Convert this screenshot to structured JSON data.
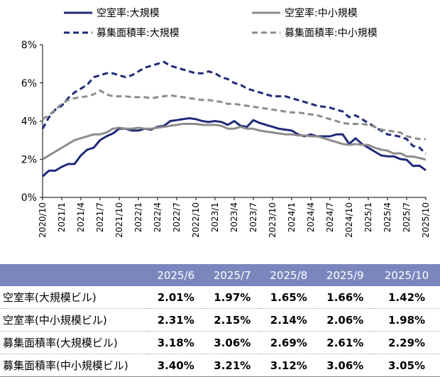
{
  "chart_data": {
    "type": "line",
    "title": "",
    "xlabel": "",
    "ylabel": "",
    "ylim": [
      0,
      8
    ],
    "y_ticks": [
      "0%",
      "2%",
      "4%",
      "6%",
      "8%"
    ],
    "grid": false,
    "legend_position": "top",
    "x_tick_labels": [
      "2020/10",
      "2021/1",
      "2021/4",
      "2021/7",
      "2021/10",
      "2022/1",
      "2022/4",
      "2022/7",
      "2022/10",
      "2023/1",
      "2023/4",
      "2023/7",
      "2023/10",
      "2024/1",
      "2024/4",
      "2024/7",
      "2024/10",
      "2025/1",
      "2025/4",
      "2025/7",
      "2025/10"
    ],
    "series": [
      {
        "name": "空室率:大規模",
        "color": "#1f2a7a",
        "dash": "solid",
        "values": [
          1.1,
          1.4,
          1.4,
          1.6,
          1.75,
          1.75,
          2.2,
          2.5,
          2.6,
          3.0,
          3.2,
          3.35,
          3.6,
          3.6,
          3.5,
          3.5,
          3.6,
          3.55,
          3.7,
          3.75,
          4.0,
          4.05,
          4.1,
          4.15,
          4.1,
          4.0,
          3.95,
          4.0,
          3.95,
          3.8,
          4.0,
          3.75,
          3.7,
          4.05,
          3.9,
          3.8,
          3.7,
          3.6,
          3.55,
          3.5,
          3.3,
          3.2,
          3.3,
          3.2,
          3.2,
          3.2,
          3.3,
          3.3,
          2.8,
          3.1,
          2.8,
          2.6,
          2.4,
          2.2,
          2.15,
          2.15,
          2.01,
          1.97,
          1.65,
          1.66,
          1.42
        ]
      },
      {
        "name": "空室率:中小規模",
        "color": "#8c8c8c",
        "dash": "solid",
        "values": [
          2.0,
          2.2,
          2.4,
          2.6,
          2.8,
          3.0,
          3.1,
          3.2,
          3.3,
          3.3,
          3.4,
          3.6,
          3.65,
          3.6,
          3.6,
          3.65,
          3.6,
          3.6,
          3.65,
          3.7,
          3.75,
          3.8,
          3.85,
          3.85,
          3.85,
          3.8,
          3.8,
          3.8,
          3.75,
          3.6,
          3.6,
          3.7,
          3.6,
          3.6,
          3.5,
          3.45,
          3.4,
          3.35,
          3.3,
          3.3,
          3.25,
          3.25,
          3.2,
          3.2,
          3.1,
          3.0,
          2.9,
          2.8,
          2.75,
          2.8,
          2.75,
          2.75,
          2.6,
          2.5,
          2.45,
          2.3,
          2.31,
          2.15,
          2.14,
          2.06,
          1.98
        ]
      },
      {
        "name": "募集面積率:大規模",
        "color": "#1f2a7a",
        "dash": "dashed",
        "values": [
          3.6,
          4.2,
          4.6,
          4.8,
          5.2,
          5.5,
          5.7,
          5.9,
          6.3,
          6.4,
          6.5,
          6.5,
          6.4,
          6.3,
          6.4,
          6.6,
          6.8,
          6.9,
          7.0,
          7.1,
          6.9,
          6.8,
          6.7,
          6.6,
          6.5,
          6.5,
          6.6,
          6.5,
          6.3,
          6.2,
          6.0,
          5.9,
          5.7,
          5.6,
          5.5,
          5.4,
          5.3,
          5.3,
          5.3,
          5.2,
          5.1,
          5.0,
          4.9,
          4.8,
          4.75,
          4.7,
          4.6,
          4.5,
          4.2,
          4.3,
          4.1,
          3.9,
          3.7,
          3.5,
          3.3,
          3.25,
          3.18,
          3.06,
          2.69,
          2.61,
          2.29
        ]
      },
      {
        "name": "募集面積率:中小規模",
        "color": "#8c8c8c",
        "dash": "dashed",
        "values": [
          4.1,
          4.3,
          4.6,
          4.9,
          5.1,
          5.2,
          5.25,
          5.3,
          5.4,
          5.6,
          5.4,
          5.3,
          5.3,
          5.3,
          5.25,
          5.25,
          5.25,
          5.2,
          5.25,
          5.3,
          5.35,
          5.3,
          5.25,
          5.2,
          5.15,
          5.1,
          5.1,
          5.05,
          5.0,
          4.9,
          4.9,
          4.85,
          4.8,
          4.75,
          4.7,
          4.65,
          4.6,
          4.55,
          4.5,
          4.45,
          4.45,
          4.4,
          4.35,
          4.3,
          4.2,
          4.1,
          4.0,
          3.9,
          3.85,
          3.85,
          3.85,
          3.8,
          3.7,
          3.55,
          3.5,
          3.45,
          3.4,
          3.21,
          3.12,
          3.06,
          3.05
        ]
      }
    ]
  },
  "table": {
    "columns": [
      "2025/6",
      "2025/7",
      "2025/8",
      "2025/9",
      "2025/10"
    ],
    "rows": [
      {
        "label": "空室率(大規模ビル)",
        "values": [
          "2.01%",
          "1.97%",
          "1.65%",
          "1.66%",
          "1.42%"
        ]
      },
      {
        "label": "空室率(中小規模ビル)",
        "values": [
          "2.31%",
          "2.15%",
          "2.14%",
          "2.06%",
          "1.98%"
        ]
      },
      {
        "label": "募集面積率(大規模ビル)",
        "values": [
          "3.18%",
          "3.06%",
          "2.69%",
          "2.61%",
          "2.29%"
        ]
      },
      {
        "label": "募集面積率(中小規模ビル)",
        "values": [
          "3.40%",
          "3.21%",
          "3.12%",
          "3.06%",
          "3.05%"
        ]
      }
    ]
  }
}
